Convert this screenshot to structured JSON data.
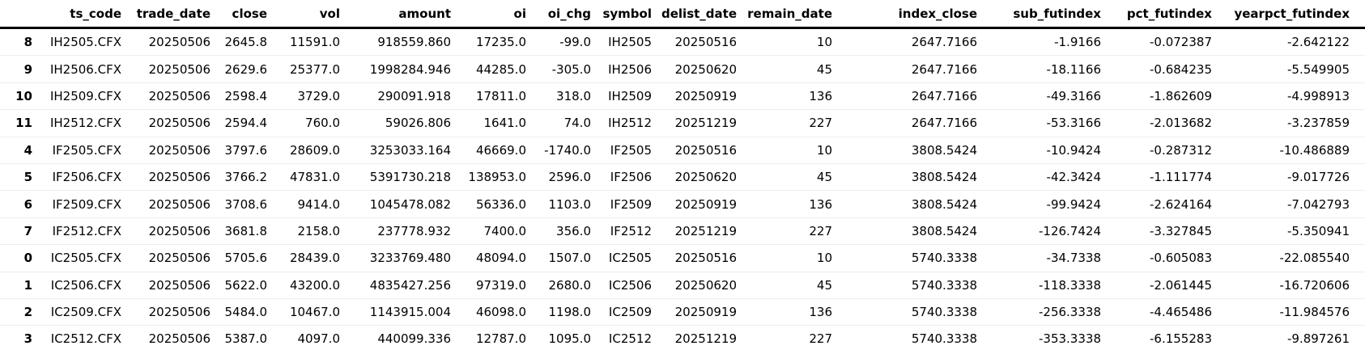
{
  "page": {
    "background": "#ffffff",
    "text_color": "#000000",
    "header_rule_color": "#000000",
    "row_divider_color": "#eeeeee"
  },
  "chart_data": {
    "type": "table",
    "index_header": "",
    "columns": [
      "ts_code",
      "trade_date",
      "close",
      "vol",
      "amount",
      "oi",
      "oi_chg",
      "symbol",
      "delist_date",
      "remain_date",
      "index_close",
      "sub_futindex",
      "pct_futindex",
      "yearpct_futindex"
    ],
    "rows": [
      {
        "index": "8",
        "cells": [
          "IH2505.CFX",
          "20250506",
          "2645.8",
          "11591.0",
          "918559.860",
          "17235.0",
          "-99.0",
          "IH2505",
          "20250516",
          "10",
          "2647.7166",
          "-1.9166",
          "-0.072387",
          "-2.642122"
        ]
      },
      {
        "index": "9",
        "cells": [
          "IH2506.CFX",
          "20250506",
          "2629.6",
          "25377.0",
          "1998284.946",
          "44285.0",
          "-305.0",
          "IH2506",
          "20250620",
          "45",
          "2647.7166",
          "-18.1166",
          "-0.684235",
          "-5.549905"
        ]
      },
      {
        "index": "10",
        "cells": [
          "IH2509.CFX",
          "20250506",
          "2598.4",
          "3729.0",
          "290091.918",
          "17811.0",
          "318.0",
          "IH2509",
          "20250919",
          "136",
          "2647.7166",
          "-49.3166",
          "-1.862609",
          "-4.998913"
        ]
      },
      {
        "index": "11",
        "cells": [
          "IH2512.CFX",
          "20250506",
          "2594.4",
          "760.0",
          "59026.806",
          "1641.0",
          "74.0",
          "IH2512",
          "20251219",
          "227",
          "2647.7166",
          "-53.3166",
          "-2.013682",
          "-3.237859"
        ]
      },
      {
        "index": "4",
        "cells": [
          "IF2505.CFX",
          "20250506",
          "3797.6",
          "28609.0",
          "3253033.164",
          "46669.0",
          "-1740.0",
          "IF2505",
          "20250516",
          "10",
          "3808.5424",
          "-10.9424",
          "-0.287312",
          "-10.486889"
        ]
      },
      {
        "index": "5",
        "cells": [
          "IF2506.CFX",
          "20250506",
          "3766.2",
          "47831.0",
          "5391730.218",
          "138953.0",
          "2596.0",
          "IF2506",
          "20250620",
          "45",
          "3808.5424",
          "-42.3424",
          "-1.111774",
          "-9.017726"
        ]
      },
      {
        "index": "6",
        "cells": [
          "IF2509.CFX",
          "20250506",
          "3708.6",
          "9414.0",
          "1045478.082",
          "56336.0",
          "1103.0",
          "IF2509",
          "20250919",
          "136",
          "3808.5424",
          "-99.9424",
          "-2.624164",
          "-7.042793"
        ]
      },
      {
        "index": "7",
        "cells": [
          "IF2512.CFX",
          "20250506",
          "3681.8",
          "2158.0",
          "237778.932",
          "7400.0",
          "356.0",
          "IF2512",
          "20251219",
          "227",
          "3808.5424",
          "-126.7424",
          "-3.327845",
          "-5.350941"
        ]
      },
      {
        "index": "0",
        "cells": [
          "IC2505.CFX",
          "20250506",
          "5705.6",
          "28439.0",
          "3233769.480",
          "48094.0",
          "1507.0",
          "IC2505",
          "20250516",
          "10",
          "5740.3338",
          "-34.7338",
          "-0.605083",
          "-22.085540"
        ]
      },
      {
        "index": "1",
        "cells": [
          "IC2506.CFX",
          "20250506",
          "5622.0",
          "43200.0",
          "4835427.256",
          "97319.0",
          "2680.0",
          "IC2506",
          "20250620",
          "45",
          "5740.3338",
          "-118.3338",
          "-2.061445",
          "-16.720606"
        ]
      },
      {
        "index": "2",
        "cells": [
          "IC2509.CFX",
          "20250506",
          "5484.0",
          "10467.0",
          "1143915.004",
          "46098.0",
          "1198.0",
          "IC2509",
          "20250919",
          "136",
          "5740.3338",
          "-256.3338",
          "-4.465486",
          "-11.984576"
        ]
      },
      {
        "index": "3",
        "cells": [
          "IC2512.CFX",
          "20250506",
          "5387.0",
          "4097.0",
          "440099.336",
          "12787.0",
          "1095.0",
          "IC2512",
          "20251219",
          "227",
          "5740.3338",
          "-353.3338",
          "-6.155283",
          "-9.897261"
        ]
      }
    ]
  }
}
